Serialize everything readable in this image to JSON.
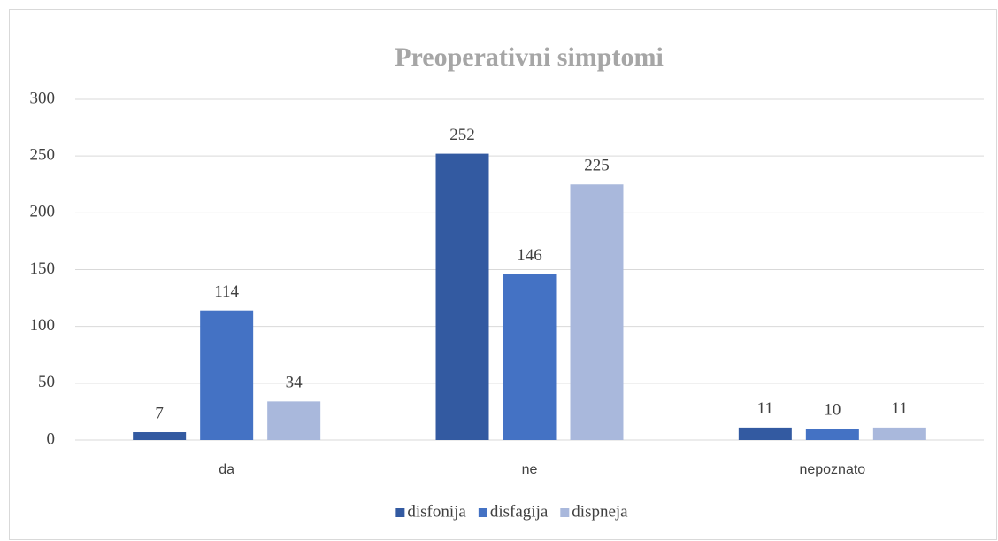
{
  "chart_data": {
    "type": "bar",
    "title": "Preoperativni simptomi",
    "categories": [
      "da",
      "ne",
      "nepoznato"
    ],
    "series": [
      {
        "name": "disfonija",
        "color": "#335aa1",
        "values": [
          7,
          252,
          11
        ]
      },
      {
        "name": "disfagija",
        "color": "#4472c4",
        "values": [
          114,
          146,
          10
        ]
      },
      {
        "name": "dispneja",
        "color": "#a9b8dc",
        "values": [
          34,
          225,
          11
        ]
      }
    ],
    "ylim": [
      0,
      300
    ],
    "yticks": [
      0,
      50,
      100,
      150,
      200,
      250,
      300
    ],
    "grid": true,
    "legend": "bottom"
  }
}
